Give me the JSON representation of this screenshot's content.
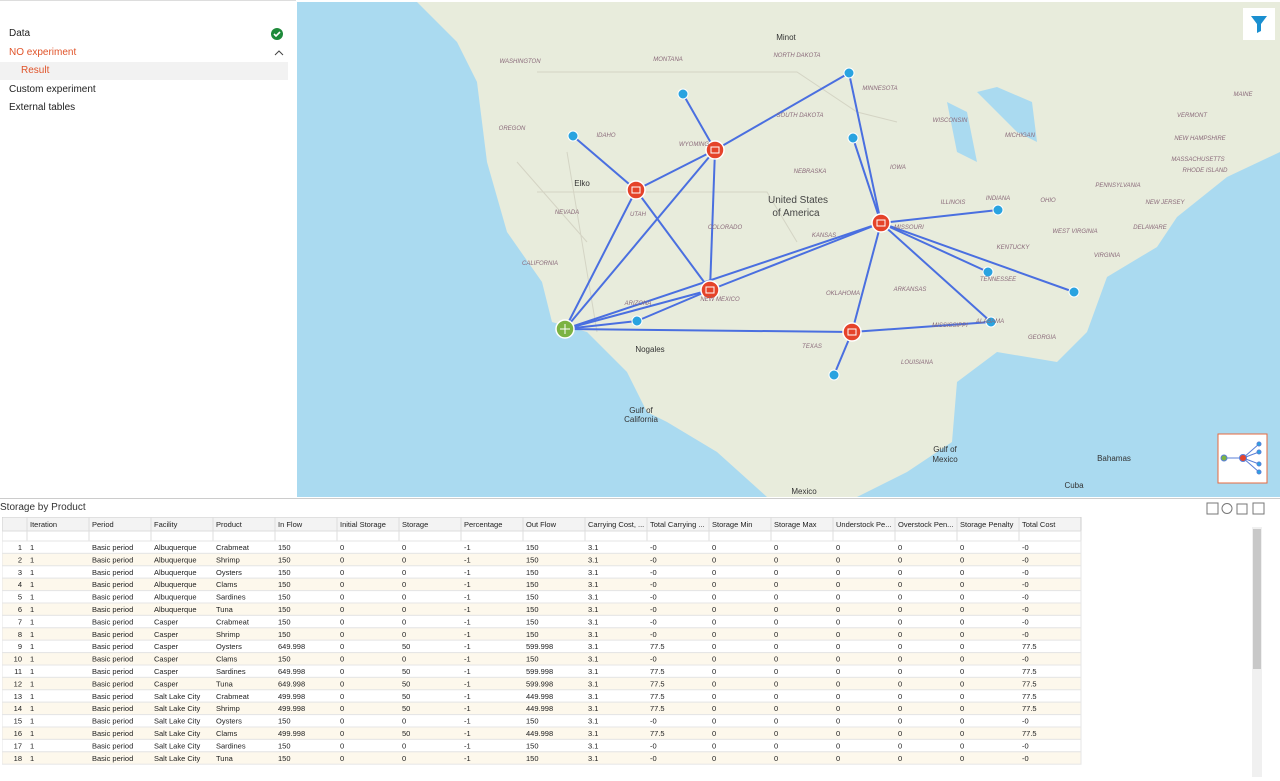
{
  "sidebar": {
    "items": [
      "Data",
      "NO experiment",
      "Result",
      "Custom experiment",
      "External tables"
    ]
  },
  "map": {
    "labels": [
      "WASHINGTON",
      "MONTANA",
      "Minot",
      "NORTH DAKOTA",
      "MINNESOTA",
      "MAINE",
      "OREGON",
      "IDAHO",
      "WYOMING",
      "SOUTH DAKOTA",
      "WISCONSIN",
      "MICHIGAN",
      "VERMONT",
      "NEW HAMPSHIRE",
      "MASSACHUSETTS",
      "RHODE ISLAND",
      "NEBRASKA",
      "IOWA",
      "Elko",
      "NEVADA",
      "UTAH",
      "United States",
      "of America",
      "COLORADO",
      "KANSAS",
      "MISSOURI",
      "ILLINOIS",
      "INDIANA",
      "OHIO",
      "PENNSYLVANIA",
      "NEW JERSEY",
      "DELAWARE",
      "WEST VIRGINIA",
      "KENTUCKY",
      "VIRGINIA",
      "CALIFORNIA",
      "ARIZONA",
      "NEW MEXICO",
      "OKLAHOMA",
      "ARKANSAS",
      "TENNESSEE",
      "MISSISSIPPI",
      "ALABAMA",
      "GEORGIA",
      "TEXAS",
      "LOUISIANA",
      "Nogales",
      "Gulf of",
      "California",
      "Gulf of",
      "Mexico",
      "Bahamas",
      "Cuba",
      "Mexico"
    ]
  },
  "table": {
    "title": "Storage by Product",
    "columns": [
      "Iteration",
      "Period",
      "Facility",
      "Product",
      "In Flow",
      "Initial Storage",
      "Storage",
      "Percentage",
      "Out Flow",
      "Carrying Cost, ...",
      "Total Carrying ...",
      "Storage Min",
      "Storage Max",
      "Understock Pe...",
      "Overstock Pen...",
      "Storage Penalty",
      "Total Cost"
    ],
    "rows": [
      [
        "1",
        "1",
        "Basic period",
        "Albuquerque",
        "Crabmeat",
        "150",
        "0",
        "0",
        "-1",
        "150",
        "3.1",
        "-0",
        "0",
        "0",
        "0",
        "0",
        "0",
        "-0"
      ],
      [
        "2",
        "1",
        "Basic period",
        "Albuquerque",
        "Shrimp",
        "150",
        "0",
        "0",
        "-1",
        "150",
        "3.1",
        "-0",
        "0",
        "0",
        "0",
        "0",
        "0",
        "-0"
      ],
      [
        "3",
        "1",
        "Basic period",
        "Albuquerque",
        "Oysters",
        "150",
        "0",
        "0",
        "-1",
        "150",
        "3.1",
        "-0",
        "0",
        "0",
        "0",
        "0",
        "0",
        "-0"
      ],
      [
        "4",
        "1",
        "Basic period",
        "Albuquerque",
        "Clams",
        "150",
        "0",
        "0",
        "-1",
        "150",
        "3.1",
        "-0",
        "0",
        "0",
        "0",
        "0",
        "0",
        "-0"
      ],
      [
        "5",
        "1",
        "Basic period",
        "Albuquerque",
        "Sardines",
        "150",
        "0",
        "0",
        "-1",
        "150",
        "3.1",
        "-0",
        "0",
        "0",
        "0",
        "0",
        "0",
        "-0"
      ],
      [
        "6",
        "1",
        "Basic period",
        "Albuquerque",
        "Tuna",
        "150",
        "0",
        "0",
        "-1",
        "150",
        "3.1",
        "-0",
        "0",
        "0",
        "0",
        "0",
        "0",
        "-0"
      ],
      [
        "7",
        "1",
        "Basic period",
        "Casper",
        "Crabmeat",
        "150",
        "0",
        "0",
        "-1",
        "150",
        "3.1",
        "-0",
        "0",
        "0",
        "0",
        "0",
        "0",
        "-0"
      ],
      [
        "8",
        "1",
        "Basic period",
        "Casper",
        "Shrimp",
        "150",
        "0",
        "0",
        "-1",
        "150",
        "3.1",
        "-0",
        "0",
        "0",
        "0",
        "0",
        "0",
        "-0"
      ],
      [
        "9",
        "1",
        "Basic period",
        "Casper",
        "Oysters",
        "649.998",
        "0",
        "50",
        "-1",
        "599.998",
        "3.1",
        "77.5",
        "0",
        "0",
        "0",
        "0",
        "0",
        "77.5"
      ],
      [
        "10",
        "1",
        "Basic period",
        "Casper",
        "Clams",
        "150",
        "0",
        "0",
        "-1",
        "150",
        "3.1",
        "-0",
        "0",
        "0",
        "0",
        "0",
        "0",
        "-0"
      ],
      [
        "11",
        "1",
        "Basic period",
        "Casper",
        "Sardines",
        "649.998",
        "0",
        "50",
        "-1",
        "599.998",
        "3.1",
        "77.5",
        "0",
        "0",
        "0",
        "0",
        "0",
        "77.5"
      ],
      [
        "12",
        "1",
        "Basic period",
        "Casper",
        "Tuna",
        "649.998",
        "0",
        "50",
        "-1",
        "599.998",
        "3.1",
        "77.5",
        "0",
        "0",
        "0",
        "0",
        "0",
        "77.5"
      ],
      [
        "13",
        "1",
        "Basic period",
        "Salt Lake City",
        "Crabmeat",
        "499.998",
        "0",
        "50",
        "-1",
        "449.998",
        "3.1",
        "77.5",
        "0",
        "0",
        "0",
        "0",
        "0",
        "77.5"
      ],
      [
        "14",
        "1",
        "Basic period",
        "Salt Lake City",
        "Shrimp",
        "499.998",
        "0",
        "50",
        "-1",
        "449.998",
        "3.1",
        "77.5",
        "0",
        "0",
        "0",
        "0",
        "0",
        "77.5"
      ],
      [
        "15",
        "1",
        "Basic period",
        "Salt Lake City",
        "Oysters",
        "150",
        "0",
        "0",
        "-1",
        "150",
        "3.1",
        "-0",
        "0",
        "0",
        "0",
        "0",
        "0",
        "-0"
      ],
      [
        "16",
        "1",
        "Basic period",
        "Salt Lake City",
        "Clams",
        "499.998",
        "0",
        "50",
        "-1",
        "449.998",
        "3.1",
        "77.5",
        "0",
        "0",
        "0",
        "0",
        "0",
        "77.5"
      ],
      [
        "17",
        "1",
        "Basic period",
        "Salt Lake City",
        "Sardines",
        "150",
        "0",
        "0",
        "-1",
        "150",
        "3.1",
        "-0",
        "0",
        "0",
        "0",
        "0",
        "0",
        "-0"
      ],
      [
        "18",
        "1",
        "Basic period",
        "Salt Lake City",
        "Tuna",
        "150",
        "0",
        "0",
        "-1",
        "150",
        "3.1",
        "-0",
        "0",
        "0",
        "0",
        "0",
        "0",
        "-0"
      ]
    ]
  }
}
